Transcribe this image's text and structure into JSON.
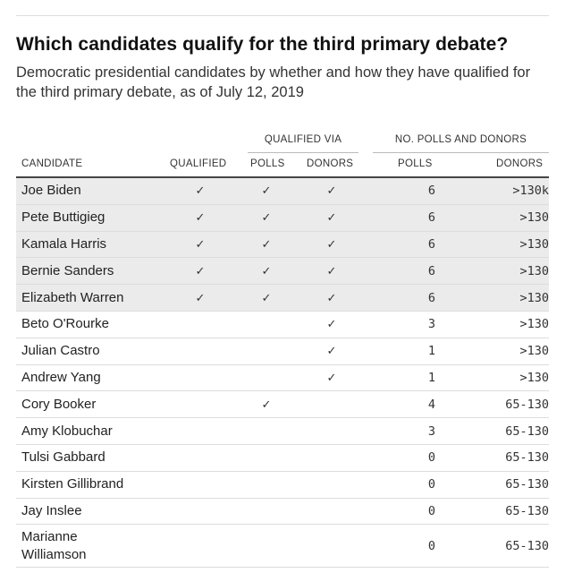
{
  "title": "Which candidates qualify for the third primary debate?",
  "subtitle": "Democratic presidential candidates by whether and how they have qualified for the third primary debate, as of July 12, 2019",
  "chart_data": {
    "type": "table",
    "group_headers": [
      "QUALIFIED VIA",
      "NO. POLLS AND DONORS"
    ],
    "columns": [
      "CANDIDATE",
      "QUALIFIED",
      "POLLS",
      "DONORS",
      "POLLS",
      "DONORS"
    ],
    "check_mark": "✓",
    "rows": [
      {
        "candidate": "Joe Biden",
        "qualified": true,
        "via_polls": true,
        "via_donors": true,
        "polls": "6",
        "donors": ">130k"
      },
      {
        "candidate": "Pete Buttigieg",
        "qualified": true,
        "via_polls": true,
        "via_donors": true,
        "polls": "6",
        "donors": ">130"
      },
      {
        "candidate": "Kamala Harris",
        "qualified": true,
        "via_polls": true,
        "via_donors": true,
        "polls": "6",
        "donors": ">130"
      },
      {
        "candidate": "Bernie Sanders",
        "qualified": true,
        "via_polls": true,
        "via_donors": true,
        "polls": "6",
        "donors": ">130"
      },
      {
        "candidate": "Elizabeth Warren",
        "qualified": true,
        "via_polls": true,
        "via_donors": true,
        "polls": "6",
        "donors": ">130"
      },
      {
        "candidate": "Beto O'Rourke",
        "qualified": false,
        "via_polls": false,
        "via_donors": true,
        "polls": "3",
        "donors": ">130"
      },
      {
        "candidate": "Julian Castro",
        "qualified": false,
        "via_polls": false,
        "via_donors": true,
        "polls": "1",
        "donors": ">130"
      },
      {
        "candidate": "Andrew Yang",
        "qualified": false,
        "via_polls": false,
        "via_donors": true,
        "polls": "1",
        "donors": ">130"
      },
      {
        "candidate": "Cory Booker",
        "qualified": false,
        "via_polls": true,
        "via_donors": false,
        "polls": "4",
        "donors": "65-130"
      },
      {
        "candidate": "Amy Klobuchar",
        "qualified": false,
        "via_polls": false,
        "via_donors": false,
        "polls": "3",
        "donors": "65-130"
      },
      {
        "candidate": "Tulsi Gabbard",
        "qualified": false,
        "via_polls": false,
        "via_donors": false,
        "polls": "0",
        "donors": "65-130"
      },
      {
        "candidate": "Kirsten Gillibrand",
        "qualified": false,
        "via_polls": false,
        "via_donors": false,
        "polls": "0",
        "donors": "65-130"
      },
      {
        "candidate": "Jay Inslee",
        "qualified": false,
        "via_polls": false,
        "via_donors": false,
        "polls": "0",
        "donors": "65-130"
      },
      {
        "candidate": "Marianne Williamson",
        "qualified": false,
        "via_polls": false,
        "via_donors": false,
        "polls": "0",
        "donors": "65-130"
      }
    ],
    "colors": {
      "shaded_row": "#ebebeb",
      "rule": "#dcdcdc",
      "header_rule": "#444444"
    }
  }
}
